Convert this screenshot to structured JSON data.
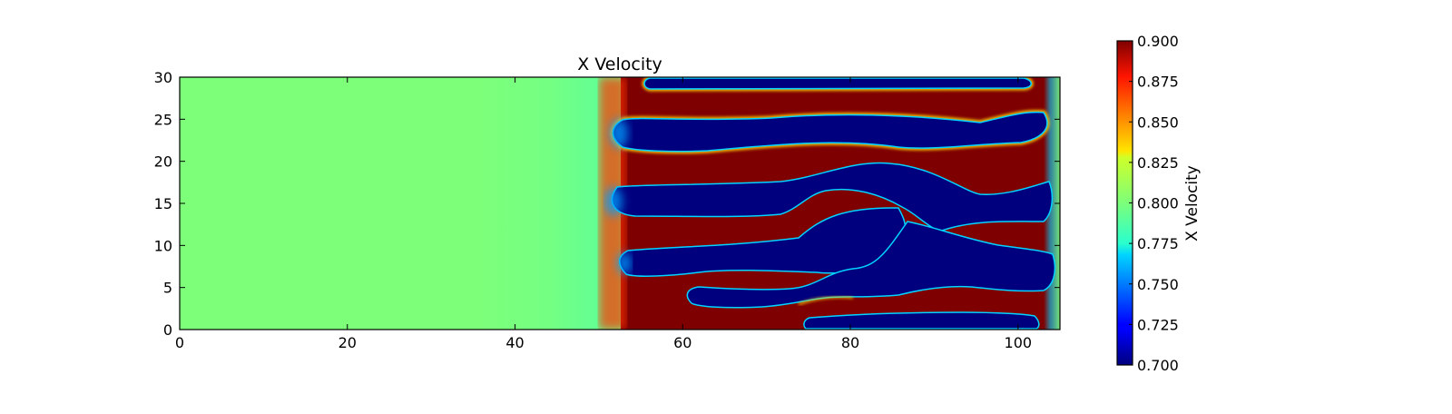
{
  "chart_data": {
    "type": "heatmap",
    "title": "X Velocity",
    "xlabel": "",
    "ylabel": "",
    "xlim": [
      0,
      105
    ],
    "ylim": [
      0,
      30
    ],
    "x_ticks": [
      0,
      20,
      40,
      60,
      80,
      100
    ],
    "y_ticks": [
      0,
      5,
      10,
      15,
      20,
      25,
      30
    ],
    "colormap": "jet",
    "colorbar": {
      "label": "X Velocity",
      "range": [
        0.7,
        0.9
      ],
      "ticks": [
        "0.700",
        "0.725",
        "0.750",
        "0.775",
        "0.800",
        "0.825",
        "0.850",
        "0.875",
        "0.900"
      ]
    },
    "field_description": {
      "background_value": 0.8,
      "transition_x": 53,
      "stripes": [
        {
          "y_center": 29.0,
          "value": 0.7,
          "x_start": 56,
          "x_end": 101
        },
        {
          "y_center": 24.0,
          "value": 0.7,
          "x_start": 52,
          "x_end": 101
        },
        {
          "y_center": 15.5,
          "value": 0.7,
          "x_start": 51,
          "x_end": 102
        },
        {
          "y_center": 7.5,
          "value": 0.7,
          "x_start": 53,
          "x_end": 102
        },
        {
          "y_center": 4.0,
          "value": 0.7,
          "x_start": 61,
          "x_end": 100
        },
        {
          "y_center": 0.8,
          "value": 0.7,
          "x_start": 75,
          "x_end": 101
        }
      ],
      "high_value": 0.9
    }
  }
}
